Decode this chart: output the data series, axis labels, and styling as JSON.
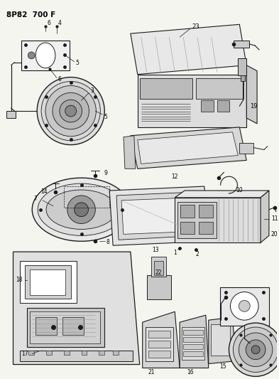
{
  "title": "8P82  700 F",
  "bg_color": "#f5f5f0",
  "line_color": "#1a1a1a",
  "fig_width": 3.93,
  "fig_height": 5.33,
  "dpi": 100,
  "ax_bg": "#f5f5f0"
}
